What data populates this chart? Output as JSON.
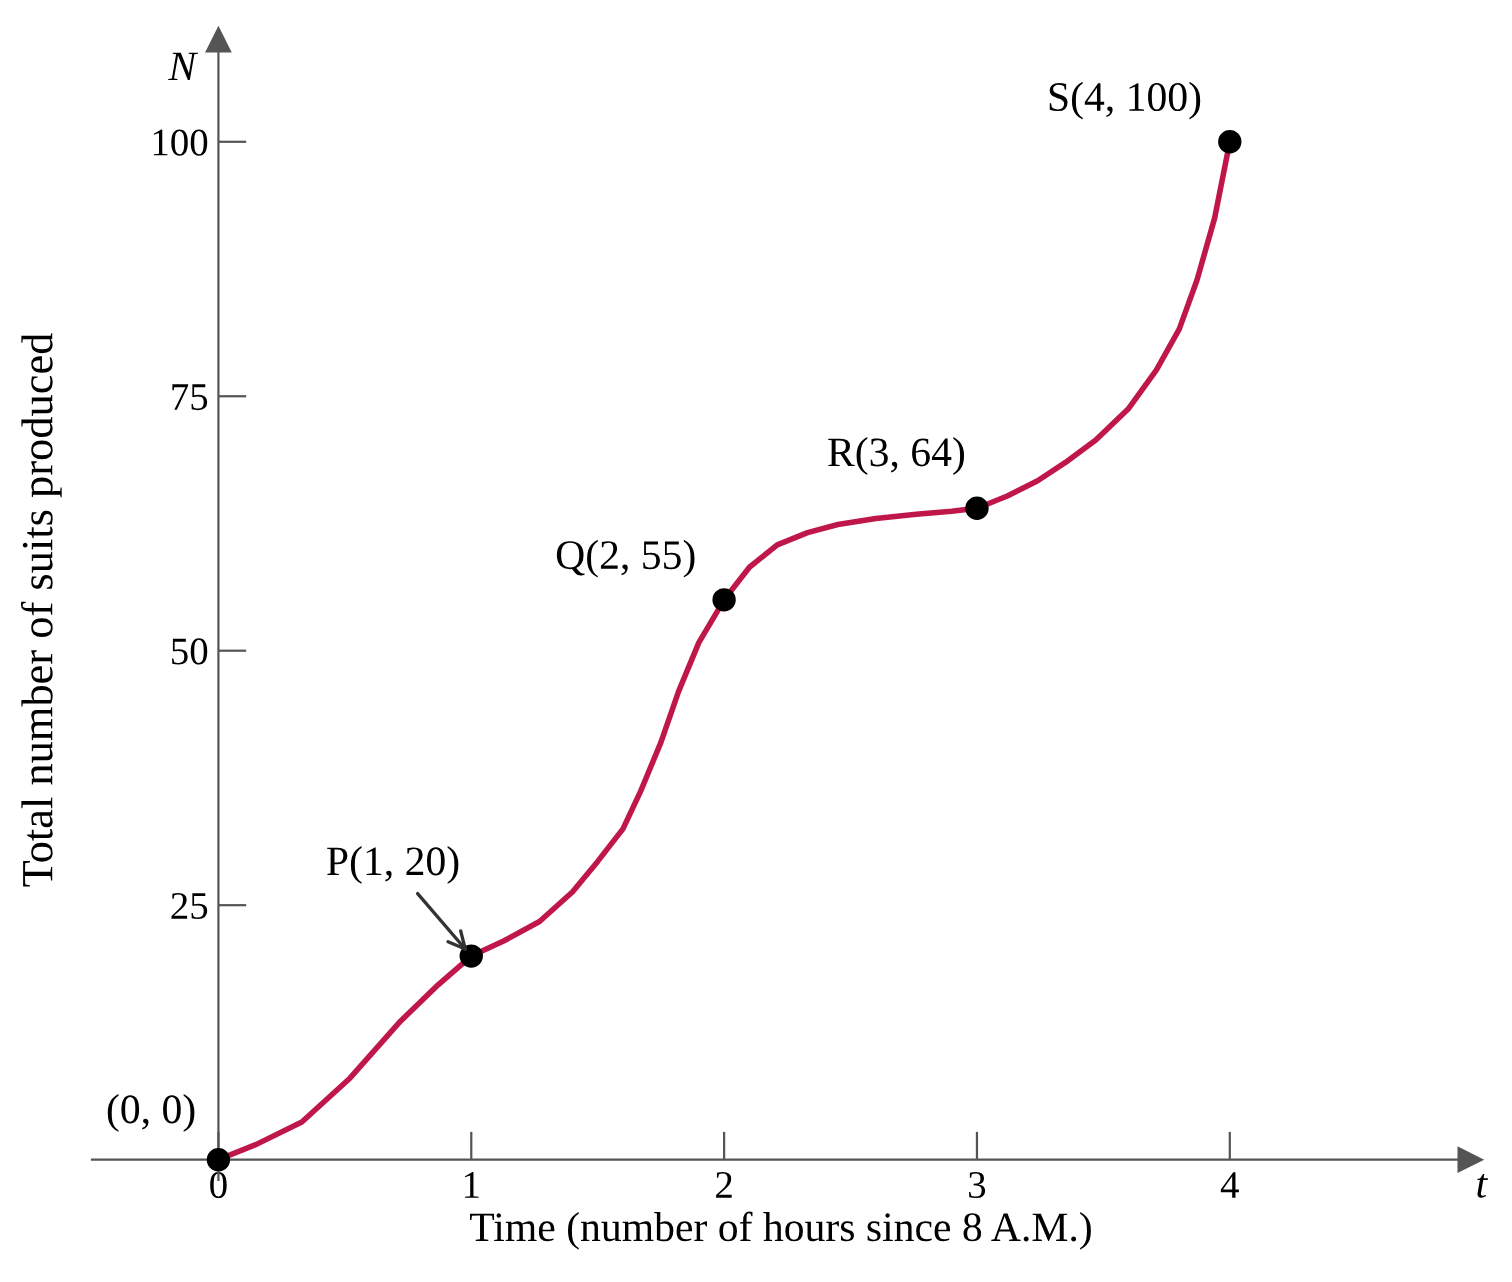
{
  "chart_data": {
    "type": "line",
    "xlabel": "Time (number of hours since 8 A.M.)",
    "ylabel": "Total number of suits produced",
    "xlim": [
      -0.5,
      4.95
    ],
    "ylim": [
      -2,
      110
    ],
    "xticks": [
      0,
      1,
      2,
      3,
      4
    ],
    "yticks": [
      25,
      50,
      75,
      100
    ],
    "grid": false,
    "series": [
      {
        "color": "#c0174a",
        "marker": "none",
        "line_style": "solid",
        "x": [
          0,
          0.15,
          0.33,
          0.52,
          0.72,
          0.87,
          1,
          1.13,
          1.27,
          1.4,
          1.5,
          1.6,
          1.67,
          1.75,
          1.82,
          1.9,
          2,
          2.1,
          2.21,
          2.33,
          2.45,
          2.6,
          2.76,
          2.9,
          3,
          3.12,
          3.24,
          3.35,
          3.47,
          3.6,
          3.71,
          3.8,
          3.87,
          3.94,
          4
        ],
        "values": [
          0,
          1.5,
          3.7,
          8,
          13.6,
          17.2,
          20,
          21.5,
          23.4,
          26.3,
          29.3,
          32.5,
          36.2,
          41,
          46,
          50.8,
          55,
          58.2,
          60.4,
          61.6,
          62.4,
          63,
          63.4,
          63.7,
          64,
          65.2,
          66.7,
          68.5,
          70.7,
          73.8,
          77.6,
          81.6,
          86.4,
          92.5,
          100
        ]
      },
      {
        "type": "scatter",
        "color": "#000000",
        "marker": "circle",
        "x": [
          0,
          1,
          2,
          3,
          4
        ],
        "values": [
          0,
          20,
          55,
          64,
          100
        ]
      }
    ],
    "annotations": [
      {
        "text": "(0, 0)",
        "x": 0,
        "y": 0
      },
      {
        "text": "P(1, 20)",
        "x": 1,
        "y": 20
      },
      {
        "text": "Q(2, 55)",
        "x": 2,
        "y": 55
      },
      {
        "text": "R(3, 64)",
        "x": 3,
        "y": 64
      },
      {
        "text": "S(4, 100)",
        "x": 4,
        "y": 100
      },
      "N",
      "t"
    ]
  }
}
